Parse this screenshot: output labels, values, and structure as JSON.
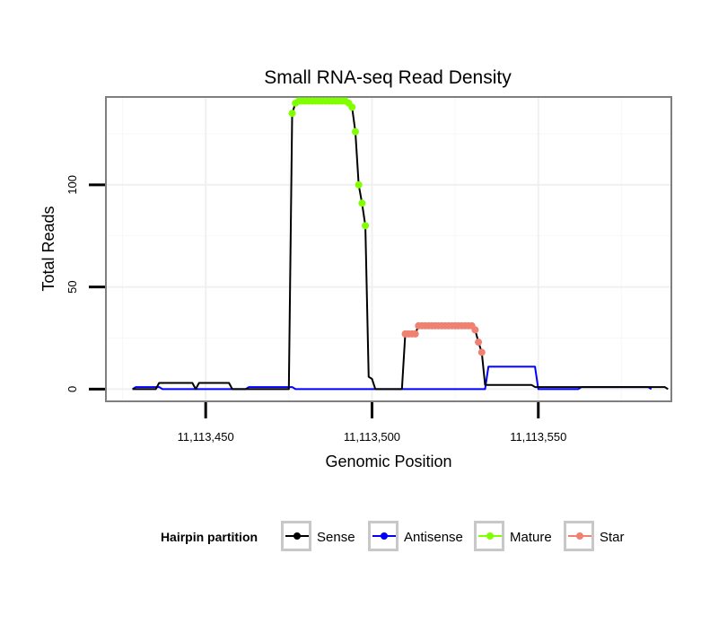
{
  "chart_data": {
    "type": "line",
    "title": "Small RNA-seq Read Density",
    "xlabel": "Genomic Position",
    "ylabel": "Total Reads",
    "xlim": [
      11113420,
      11113590
    ],
    "ylim": [
      -6,
      143
    ],
    "x_ticks": [
      {
        "value": 11113450,
        "label": "11,113,450"
      },
      {
        "value": 11113500,
        "label": "11,113,500"
      },
      {
        "value": 11113550,
        "label": "11,113,550"
      }
    ],
    "y_ticks": [
      {
        "value": 0,
        "label": "0"
      },
      {
        "value": 50,
        "label": "50"
      },
      {
        "value": 100,
        "label": "100"
      }
    ],
    "grid": true,
    "legend": {
      "title": "Hairpin partition",
      "position": "bottom",
      "entries": [
        "Sense",
        "Antisense",
        "Mature",
        "Star"
      ]
    },
    "series": [
      {
        "name": "Sense",
        "kind": "line",
        "color": "#000000",
        "points": [
          [
            11113428,
            0
          ],
          [
            11113435,
            0
          ],
          [
            11113436,
            3
          ],
          [
            11113446,
            3
          ],
          [
            11113447,
            0
          ],
          [
            11113448,
            3
          ],
          [
            11113457,
            3
          ],
          [
            11113458,
            0
          ],
          [
            11113475,
            0
          ],
          [
            11113476,
            135
          ],
          [
            11113477,
            140
          ],
          [
            11113493,
            140
          ],
          [
            11113494,
            138
          ],
          [
            11113495,
            126
          ],
          [
            11113496,
            100
          ],
          [
            11113497,
            91
          ],
          [
            11113498,
            80
          ],
          [
            11113499,
            6
          ],
          [
            11113500,
            5
          ],
          [
            11113501,
            0
          ],
          [
            11113509,
            0
          ],
          [
            11113510,
            27
          ],
          [
            11113513,
            27
          ],
          [
            11113514,
            31
          ],
          [
            11113530,
            31
          ],
          [
            11113531,
            29
          ],
          [
            11113532,
            23
          ],
          [
            11113533,
            18
          ],
          [
            11113534,
            2
          ],
          [
            11113548,
            2
          ],
          [
            11113549,
            1
          ],
          [
            11113588,
            1
          ],
          [
            11113589,
            0
          ]
        ]
      },
      {
        "name": "Antisense",
        "kind": "line",
        "color": "#0000ff",
        "points": [
          [
            11113428,
            0
          ],
          [
            11113429,
            1
          ],
          [
            11113436,
            1
          ],
          [
            11113437,
            0
          ],
          [
            11113462,
            0
          ],
          [
            11113463,
            1
          ],
          [
            11113476,
            1
          ],
          [
            11113477,
            0
          ],
          [
            11113534,
            0
          ],
          [
            11113535,
            11
          ],
          [
            11113549,
            11
          ],
          [
            11113550,
            0
          ],
          [
            11113562,
            0
          ],
          [
            11113563,
            1
          ],
          [
            11113583,
            1
          ],
          [
            11113584,
            0
          ]
        ]
      },
      {
        "name": "Mature",
        "kind": "points",
        "color": "#7fff00",
        "points": [
          [
            11113476,
            135
          ],
          [
            11113477,
            140
          ],
          [
            11113478,
            141
          ],
          [
            11113479,
            141
          ],
          [
            11113480,
            141
          ],
          [
            11113481,
            141
          ],
          [
            11113482,
            141
          ],
          [
            11113483,
            141
          ],
          [
            11113484,
            141
          ],
          [
            11113485,
            141
          ],
          [
            11113486,
            141
          ],
          [
            11113487,
            141
          ],
          [
            11113488,
            141
          ],
          [
            11113489,
            141
          ],
          [
            11113490,
            141
          ],
          [
            11113491,
            141
          ],
          [
            11113492,
            141
          ],
          [
            11113493,
            140
          ],
          [
            11113494,
            138
          ],
          [
            11113495,
            126
          ],
          [
            11113496,
            100
          ],
          [
            11113497,
            91
          ],
          [
            11113498,
            80
          ]
        ]
      },
      {
        "name": "Star",
        "kind": "points",
        "color": "#f08070",
        "points": [
          [
            11113510,
            27
          ],
          [
            11113511,
            27
          ],
          [
            11113512,
            27
          ],
          [
            11113513,
            27
          ],
          [
            11113514,
            31
          ],
          [
            11113515,
            31
          ],
          [
            11113516,
            31
          ],
          [
            11113517,
            31
          ],
          [
            11113518,
            31
          ],
          [
            11113519,
            31
          ],
          [
            11113520,
            31
          ],
          [
            11113521,
            31
          ],
          [
            11113522,
            31
          ],
          [
            11113523,
            31
          ],
          [
            11113524,
            31
          ],
          [
            11113525,
            31
          ],
          [
            11113526,
            31
          ],
          [
            11113527,
            31
          ],
          [
            11113528,
            31
          ],
          [
            11113529,
            31
          ],
          [
            11113530,
            31
          ],
          [
            11113531,
            29
          ],
          [
            11113532,
            23
          ],
          [
            11113533,
            18
          ]
        ]
      }
    ]
  }
}
